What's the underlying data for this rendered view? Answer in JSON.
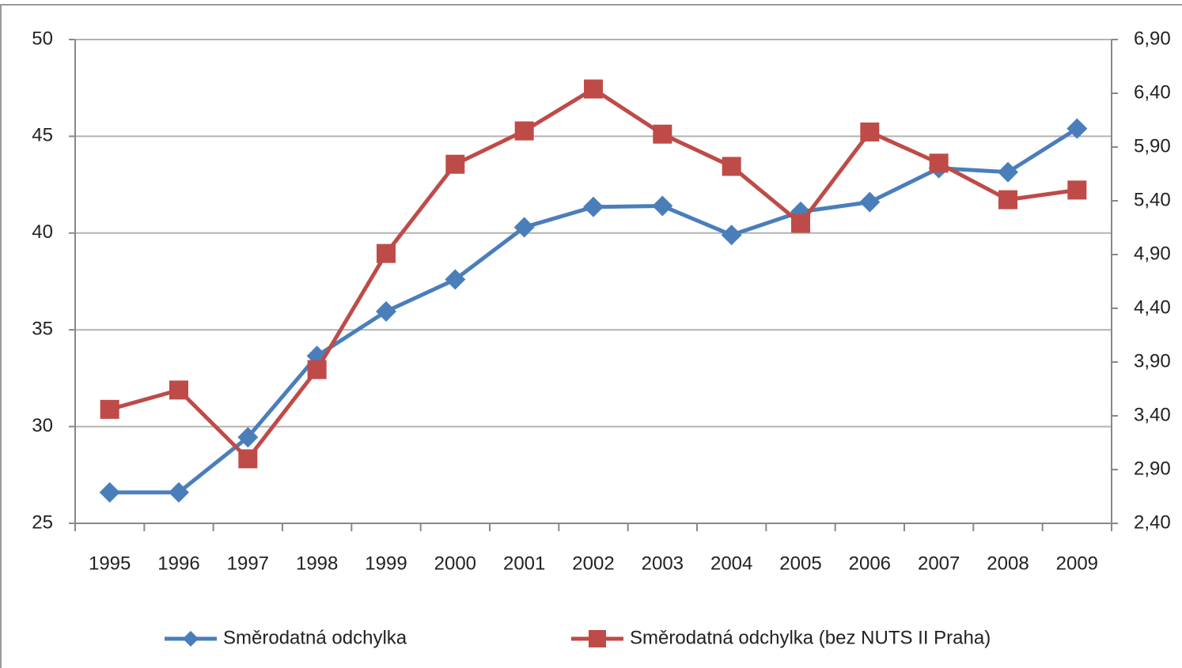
{
  "chart_data": {
    "type": "line",
    "categories": [
      "1995",
      "1996",
      "1997",
      "1998",
      "1999",
      "2000",
      "2001",
      "2002",
      "2003",
      "2004",
      "2005",
      "2006",
      "2007",
      "2008",
      "2009"
    ],
    "series": [
      {
        "name": "Směrodatná odchylka",
        "color": "#4a7ebb",
        "marker": "diamond",
        "values": [
          26.6,
          26.6,
          29.45,
          33.65,
          35.95,
          37.6,
          40.3,
          41.35,
          41.4,
          39.9,
          41.1,
          41.6,
          43.35,
          43.15,
          45.4
        ]
      },
      {
        "name": "Směrodatná odchylka (bez NUTS II Praha)",
        "color": "#be4b48",
        "marker": "square",
        "axis": "y2",
        "values": [
          3.46,
          3.64,
          3.0,
          3.83,
          4.91,
          5.74,
          6.05,
          6.44,
          6.02,
          5.72,
          5.19,
          6.04,
          5.75,
          5.41,
          5.5
        ]
      }
    ],
    "ylim": [
      25,
      50
    ],
    "yticks": [
      25,
      30,
      35,
      40,
      45,
      50
    ],
    "y2lim": [
      2.4,
      6.9
    ],
    "y2ticks": [
      {
        "value": 2.4,
        "label": "2,40"
      },
      {
        "value": 2.9,
        "label": "2,90"
      },
      {
        "value": 3.4,
        "label": "3,40"
      },
      {
        "value": 3.9,
        "label": "3,90"
      },
      {
        "value": 4.4,
        "label": "4,40"
      },
      {
        "value": 4.9,
        "label": "4,90"
      },
      {
        "value": 5.4,
        "label": "5,40"
      },
      {
        "value": 5.9,
        "label": "5,90"
      },
      {
        "value": 6.4,
        "label": "6,40"
      },
      {
        "value": 6.9,
        "label": "6,90"
      }
    ],
    "grid": true,
    "legend": "bottom"
  }
}
